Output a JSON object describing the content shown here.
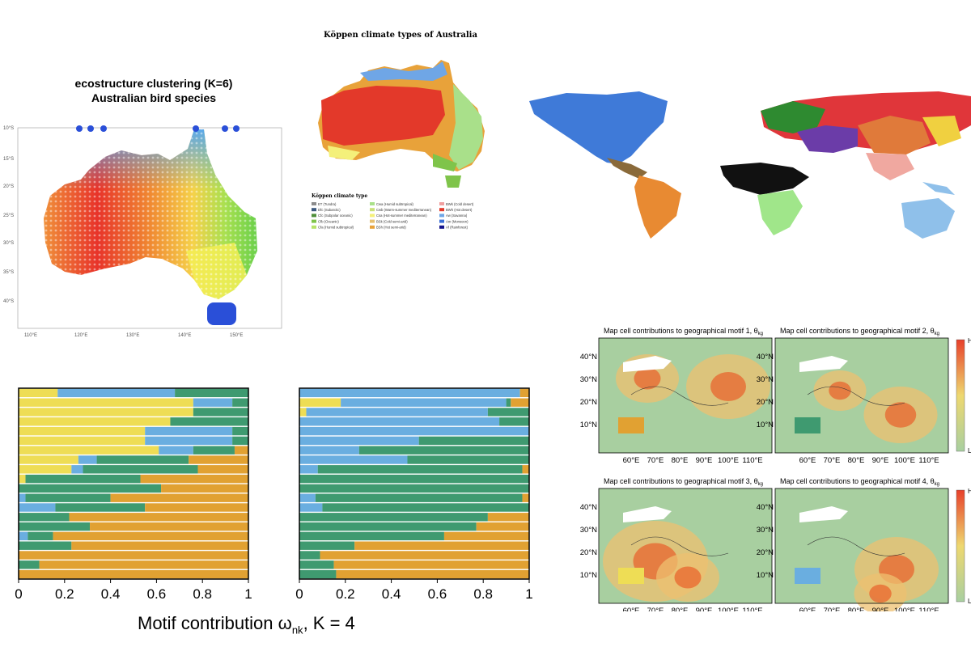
{
  "left_map": {
    "title_line1": "ecostructure clustering (K=6)",
    "title_line2": "Australian bird species",
    "lat_ticks": [
      "10°S",
      "15°S",
      "20°S",
      "25°S",
      "30°S",
      "35°S",
      "40°S"
    ],
    "lon_ticks": [
      "110°E",
      "120°E",
      "130°E",
      "140°E",
      "150°E"
    ]
  },
  "koppen": {
    "title": "Köppen climate types of Australia",
    "legend_title": "Köppen climate type",
    "legend_items": [
      {
        "label": "ET (Tundra)",
        "color": "#8c8c8c"
      },
      {
        "label": "Dfc (Subarctic)",
        "color": "#3d5a80"
      },
      {
        "label": "Cfc (Subpolar oceanic)",
        "color": "#4f8f3a"
      },
      {
        "label": "Cfb (Oceanic)",
        "color": "#7fc44a"
      },
      {
        "label": "Cfa (Humid subtropical)",
        "color": "#b6e36a"
      },
      {
        "label": "Cwa (Humid subtropical)",
        "color": "#a9e08a"
      },
      {
        "label": "Cwb (Warm-summer mediterranean)",
        "color": "#c8e07a"
      },
      {
        "label": "Csa (Hot-summer mediterranean)",
        "color": "#f4f07a"
      },
      {
        "label": "BSk (Cold semi-arid)",
        "color": "#e6c070"
      },
      {
        "label": "BSh (Hot semi-arid)",
        "color": "#e8a23a"
      },
      {
        "label": "BWk (Cold desert)",
        "color": "#f0a0a0"
      },
      {
        "label": "BWh (Hot desert)",
        "color": "#e3392a"
      },
      {
        "label": "Aw (Savanna)",
        "color": "#6fa6e6"
      },
      {
        "label": "Am (Monsoon)",
        "color": "#3a6fd8"
      },
      {
        "label": "Af (Rainforest)",
        "color": "#14148c"
      }
    ]
  },
  "chart_data": [
    {
      "type": "bar",
      "orientation": "horizontal-stacked",
      "xlim": [
        0,
        1
      ],
      "xticks": [
        "0",
        "0.2",
        "0.4",
        "0.6",
        "0.8",
        "1"
      ],
      "series_colors": [
        "#eedd55",
        "#6aaee0",
        "#3f9a70",
        "#e1a132"
      ],
      "rows": [
        [
          0.17,
          0.51,
          0.32,
          0.0
        ],
        [
          0.76,
          0.17,
          0.07,
          0.0
        ],
        [
          0.76,
          0.0,
          0.24,
          0.0
        ],
        [
          0.66,
          0.0,
          0.34,
          0.0
        ],
        [
          0.55,
          0.38,
          0.07,
          0.0
        ],
        [
          0.55,
          0.38,
          0.07,
          0.0
        ],
        [
          0.61,
          0.15,
          0.18,
          0.06
        ],
        [
          0.26,
          0.08,
          0.4,
          0.26
        ],
        [
          0.23,
          0.05,
          0.5,
          0.22
        ],
        [
          0.03,
          0.0,
          0.5,
          0.47
        ],
        [
          0.0,
          0.0,
          0.62,
          0.38
        ],
        [
          0.0,
          0.03,
          0.37,
          0.6
        ],
        [
          0.0,
          0.16,
          0.39,
          0.45
        ],
        [
          0.0,
          0.0,
          0.22,
          0.78
        ],
        [
          0.0,
          0.0,
          0.31,
          0.69
        ],
        [
          0.0,
          0.04,
          0.11,
          0.85
        ],
        [
          0.0,
          0.0,
          0.23,
          0.77
        ],
        [
          0.0,
          0.0,
          0.0,
          1.0
        ],
        [
          0.0,
          0.0,
          0.09,
          0.91
        ],
        [
          0.0,
          0.0,
          0.0,
          1.0
        ]
      ]
    },
    {
      "type": "bar",
      "orientation": "horizontal-stacked",
      "xlim": [
        0,
        1
      ],
      "xticks": [
        "0",
        "0.2",
        "0.4",
        "0.6",
        "0.8",
        "1"
      ],
      "series_colors": [
        "#eedd55",
        "#6aaee0",
        "#3f9a70",
        "#e1a132"
      ],
      "rows": [
        [
          0.0,
          0.96,
          0.0,
          0.04
        ],
        [
          0.18,
          0.72,
          0.02,
          0.08
        ],
        [
          0.03,
          0.79,
          0.18,
          0.0
        ],
        [
          0.0,
          0.87,
          0.13,
          0.0
        ],
        [
          0.0,
          1.0,
          0.0,
          0.0
        ],
        [
          0.0,
          0.52,
          0.48,
          0.0
        ],
        [
          0.0,
          0.26,
          0.74,
          0.0
        ],
        [
          0.0,
          0.47,
          0.53,
          0.0
        ],
        [
          0.0,
          0.08,
          0.89,
          0.03
        ],
        [
          0.0,
          0.0,
          1.0,
          0.0
        ],
        [
          0.0,
          0.0,
          1.0,
          0.0
        ],
        [
          0.0,
          0.07,
          0.9,
          0.03
        ],
        [
          0.0,
          0.1,
          0.9,
          0.0
        ],
        [
          0.0,
          0.0,
          0.82,
          0.18
        ],
        [
          0.0,
          0.0,
          0.77,
          0.23
        ],
        [
          0.0,
          0.0,
          0.63,
          0.37
        ],
        [
          0.0,
          0.0,
          0.24,
          0.76
        ],
        [
          0.0,
          0.0,
          0.09,
          0.91
        ],
        [
          0.0,
          0.0,
          0.15,
          0.85
        ],
        [
          0.0,
          0.0,
          0.16,
          0.84
        ]
      ]
    }
  ],
  "bottom_xlabel": {
    "main": "Motif contribution ω",
    "sub": "nk",
    "suffix": ",  K = 4"
  },
  "asia_panels": {
    "titles": [
      "Map cell contributions to geographical motif 1, θ",
      "Map cell contributions to geographical motif 2, θ",
      "Map cell contributions to geographical motif 3, θ",
      "Map cell contributions to geographical motif 4, θ"
    ],
    "title_sub": "kg",
    "swatch_colors": [
      "#e1a132",
      "#3f9a70",
      "#eedd55",
      "#6aaee0"
    ],
    "lat_ticks": [
      "40°N",
      "30°N",
      "20°N",
      "10°N"
    ],
    "lon_ticks": [
      "60°E",
      "70°E",
      "80°E",
      "90°E",
      "100°E",
      "110°E"
    ],
    "colorbar_high": "High",
    "colorbar_low": "Low"
  }
}
